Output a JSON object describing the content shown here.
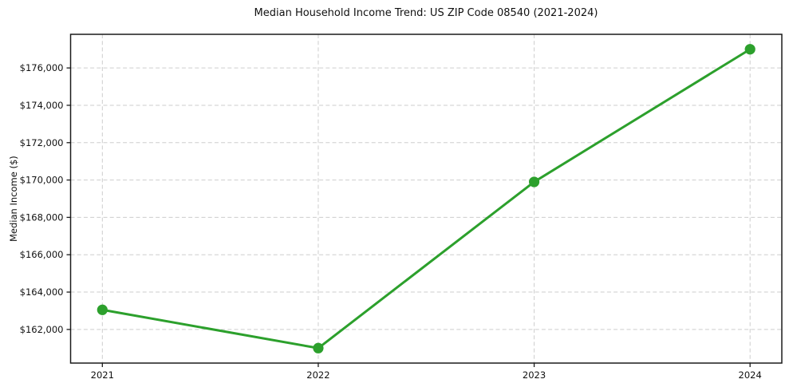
{
  "chart_data": {
    "type": "line",
    "title": "Median Household Income Trend: US ZIP Code 08540 (2021-2024)",
    "xlabel": "",
    "ylabel": "Median Income ($)",
    "categories": [
      "2021",
      "2022",
      "2023",
      "2024"
    ],
    "series": [
      {
        "name": "Median Household Income",
        "values": [
          163050,
          161000,
          169900,
          177000
        ]
      }
    ],
    "yticks": [
      162000,
      164000,
      166000,
      168000,
      170000,
      172000,
      174000,
      176000
    ],
    "ytick_prefix": "$",
    "ylim": [
      160200,
      177800
    ],
    "grid": true,
    "grid_style": "dashed",
    "legend_position": "none",
    "colors": {
      "line": "#2ca02c",
      "marker": "#2ca02c",
      "grid": "#cdcdcd",
      "axis": "#1a1a1a",
      "text": "#111111",
      "background": "#ffffff"
    },
    "marker": "circle",
    "marker_radius": 6.6
  }
}
